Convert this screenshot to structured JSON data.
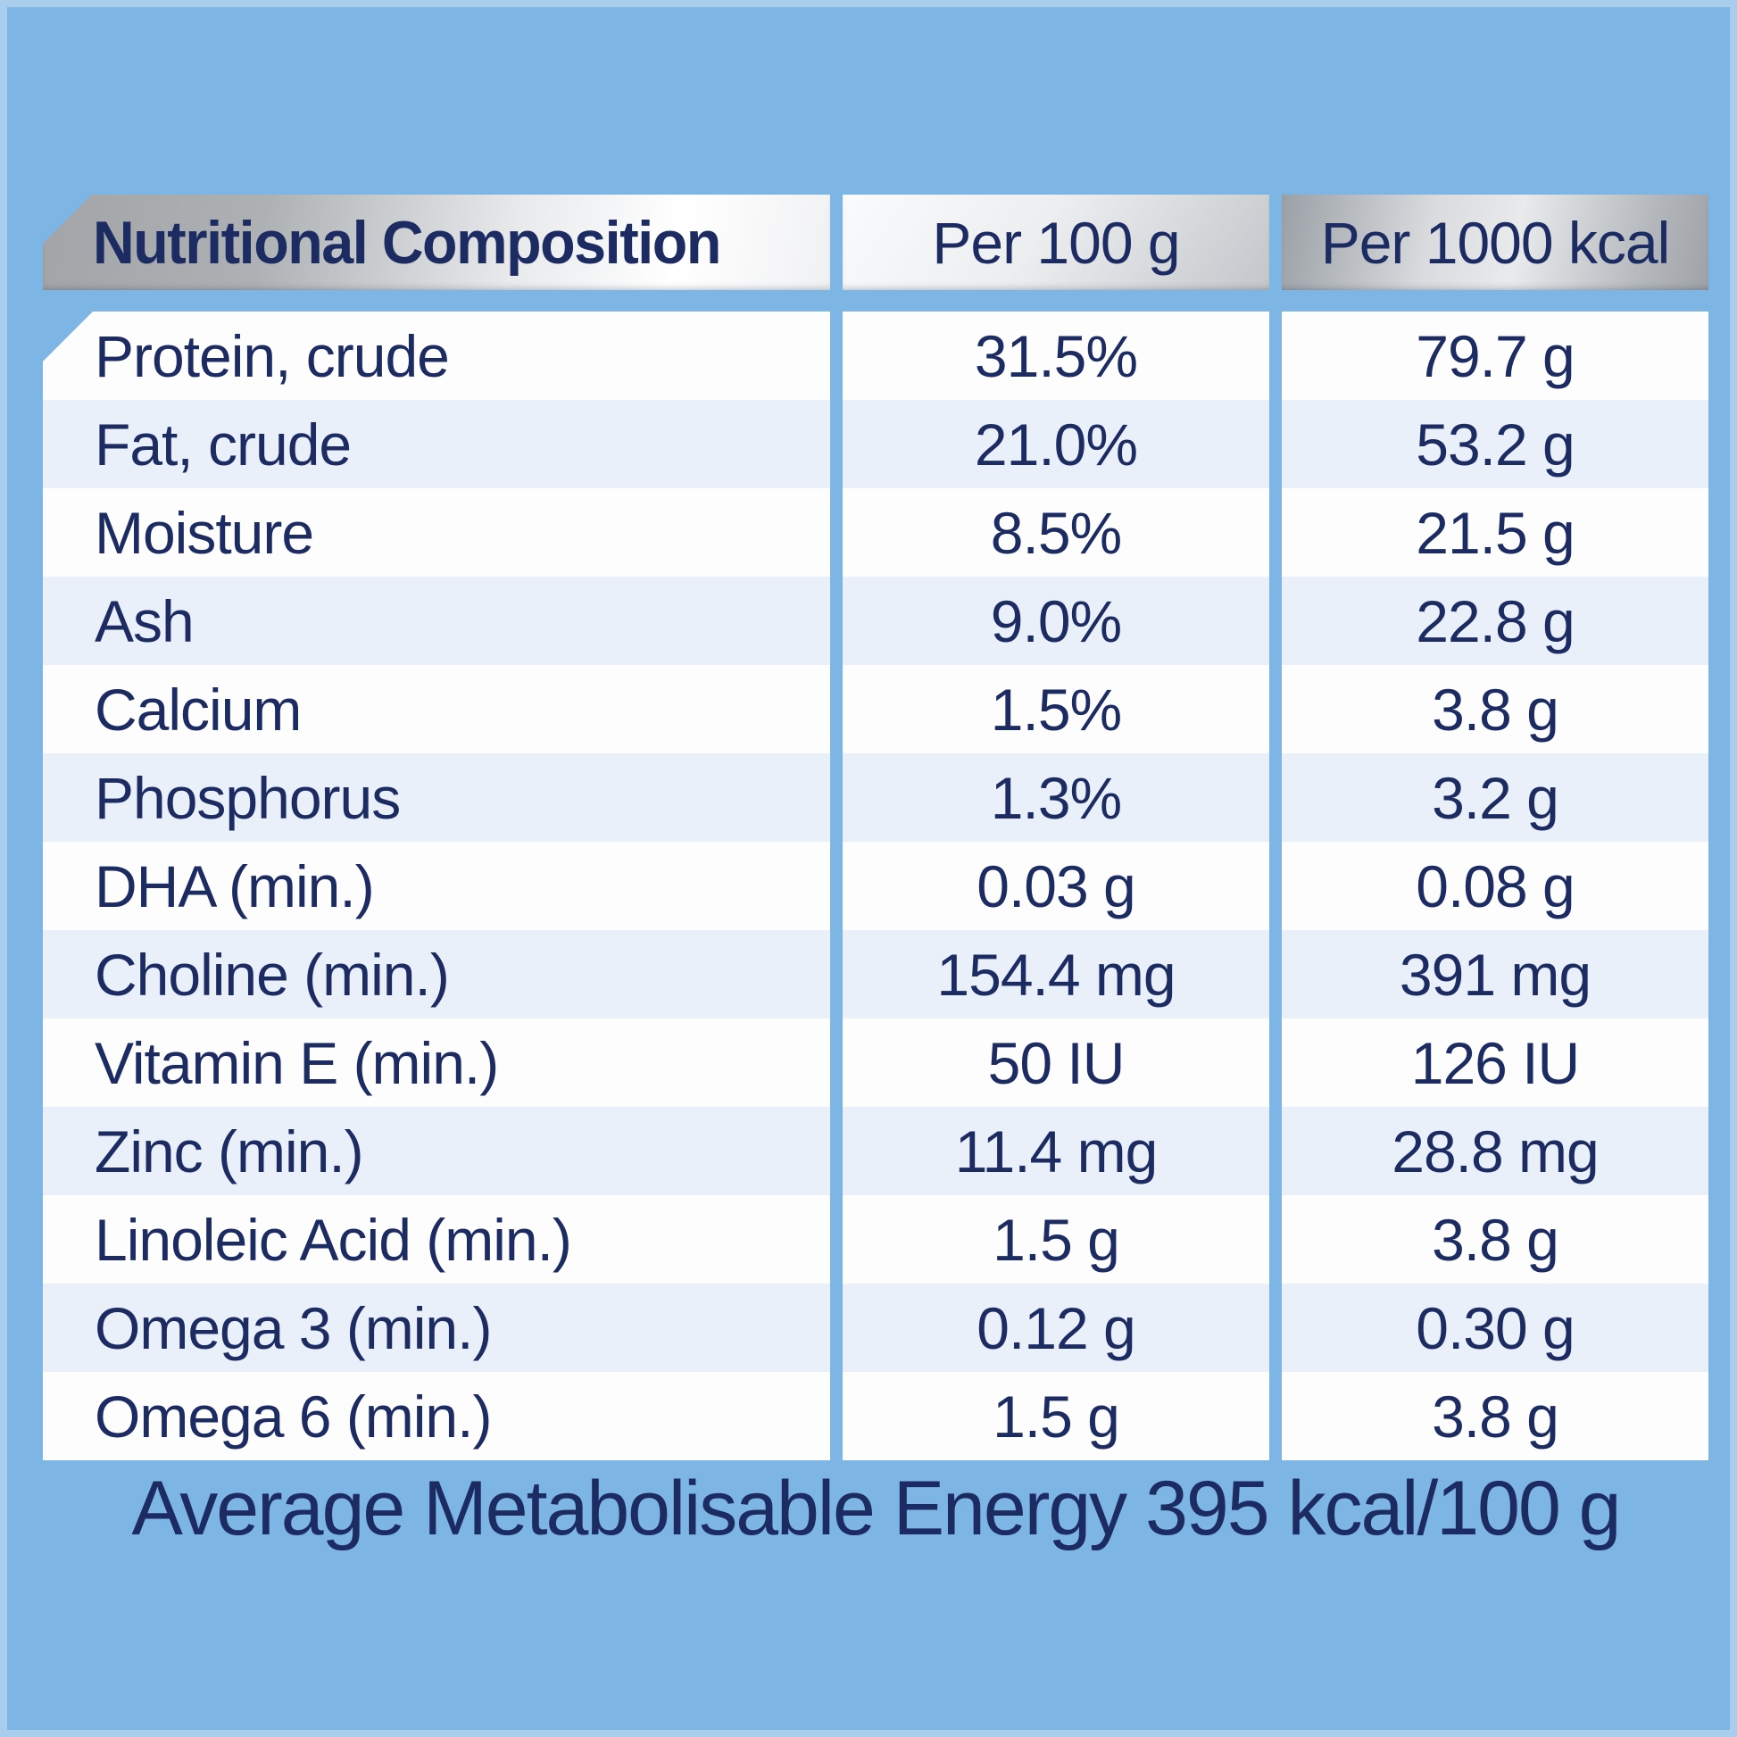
{
  "page": {
    "background_color": "#7db6e4",
    "frame_color": "#a9cdec",
    "text_color": "#1c2b62",
    "row_color_white": "#fdfdfe",
    "row_color_blue": "#e9f0fa"
  },
  "table": {
    "headers": [
      "Nutritional Composition",
      "Per 100 g",
      "Per 1000 kcal"
    ],
    "rows": [
      {
        "nutrient": "Protein, crude",
        "per_100g": "31.5%",
        "per_1000kcal": "79.7 g"
      },
      {
        "nutrient": "Fat, crude",
        "per_100g": "21.0%",
        "per_1000kcal": "53.2 g"
      },
      {
        "nutrient": "Moisture",
        "per_100g": "8.5%",
        "per_1000kcal": "21.5 g"
      },
      {
        "nutrient": "Ash",
        "per_100g": "9.0%",
        "per_1000kcal": "22.8 g"
      },
      {
        "nutrient": "Calcium",
        "per_100g": "1.5%",
        "per_1000kcal": "3.8 g"
      },
      {
        "nutrient": "Phosphorus",
        "per_100g": "1.3%",
        "per_1000kcal": "3.2 g"
      },
      {
        "nutrient": "DHA (min.)",
        "per_100g": "0.03 g",
        "per_1000kcal": "0.08 g"
      },
      {
        "nutrient": "Choline (min.)",
        "per_100g": "154.4 mg",
        "per_1000kcal": "391 mg"
      },
      {
        "nutrient": "Vitamin E (min.)",
        "per_100g": "50 IU",
        "per_1000kcal": "126 IU"
      },
      {
        "nutrient": "Zinc (min.)",
        "per_100g": "11.4 mg",
        "per_1000kcal": "28.8 mg"
      },
      {
        "nutrient": "Linoleic Acid (min.)",
        "per_100g": "1.5 g",
        "per_1000kcal": "3.8 g"
      },
      {
        "nutrient": "Omega 3 (min.)",
        "per_100g": "0.12 g",
        "per_1000kcal": "0.30 g"
      },
      {
        "nutrient": "Omega 6 (min.)",
        "per_100g": "1.5 g",
        "per_1000kcal": "3.8 g"
      }
    ]
  },
  "footer": {
    "text": "Average Metabolisable Energy 395 kcal/100 g"
  }
}
